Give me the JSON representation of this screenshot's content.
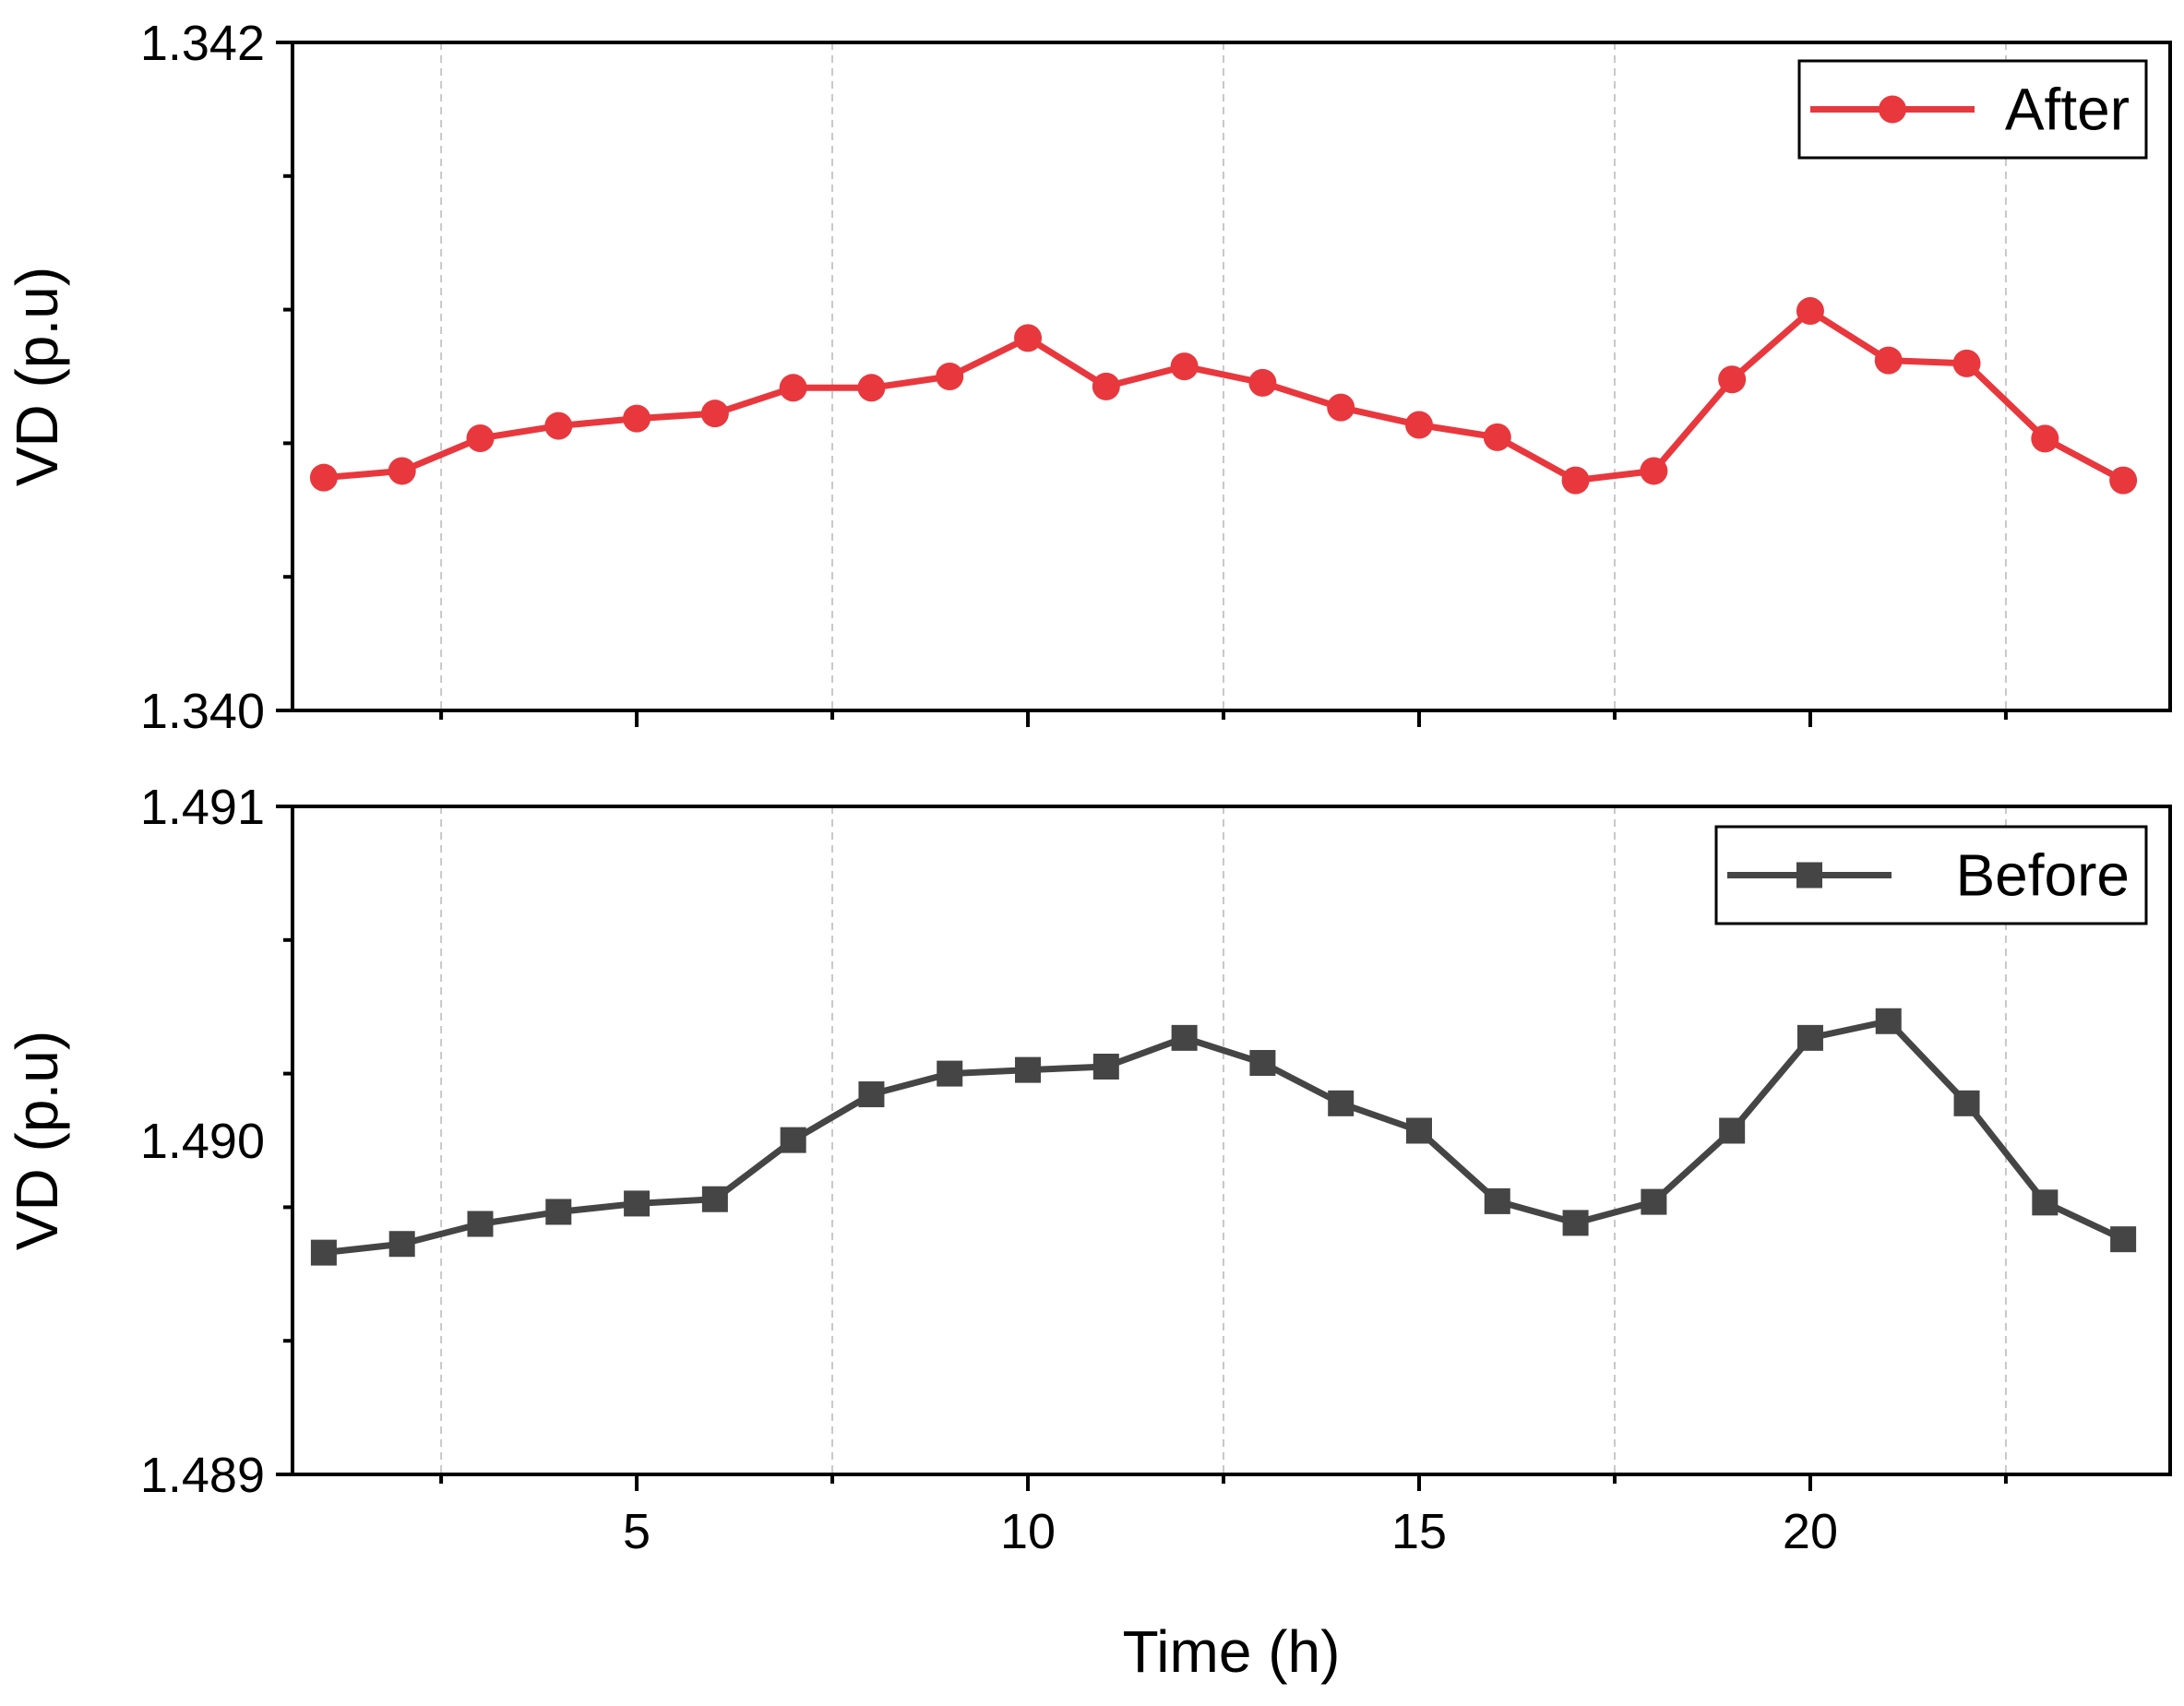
{
  "chart_data": [
    {
      "type": "line",
      "panel": "top",
      "xlabel": "",
      "ylabel": "VD (p.u)",
      "xlim": [
        0.6,
        24.6
      ],
      "ylim": [
        1.34,
        1.342
      ],
      "xticks": [
        5,
        10,
        15,
        20
      ],
      "xtick_labels": [
        "5",
        "10",
        "15",
        "20"
      ],
      "yticks": [
        1.34,
        1.342
      ],
      "ytick_labels": [
        "1.340",
        "1.342"
      ],
      "grid_x": [
        2.5,
        7.5,
        12.5,
        17.5,
        22.5
      ],
      "legend_position": "top-right",
      "series": [
        {
          "name": "After",
          "color": "#e8383d",
          "marker": "circle",
          "x": [
            1,
            2,
            3,
            4,
            5,
            6,
            7,
            8,
            9,
            10,
            11,
            12,
            13,
            14,
            15,
            16,
            17,
            18,
            19,
            20,
            21,
            22,
            23,
            24
          ],
          "values": [
            1.340697,
            1.340717,
            1.340815,
            1.340852,
            1.340874,
            1.340889,
            1.340966,
            1.340966,
            1.341,
            1.341115,
            1.34097,
            1.34103,
            1.340981,
            1.340907,
            1.340855,
            1.340818,
            1.340689,
            1.340717,
            1.340991,
            1.341196,
            1.341048,
            1.341039,
            1.340814,
            1.340689
          ]
        }
      ]
    },
    {
      "type": "line",
      "panel": "bottom",
      "xlabel": "Time (h)",
      "ylabel": "VD (p.u)",
      "xlim": [
        0.6,
        24.6
      ],
      "ylim": [
        1.489,
        1.491
      ],
      "xticks": [
        5,
        10,
        15,
        20
      ],
      "xtick_labels": [
        "5",
        "10",
        "15",
        "20"
      ],
      "yticks": [
        1.489,
        1.49,
        1.491
      ],
      "ytick_labels": [
        "1.489",
        "1.490",
        "1.491"
      ],
      "grid_x": [
        2.5,
        7.5,
        12.5,
        17.5,
        22.5
      ],
      "legend_position": "top-right",
      "series": [
        {
          "name": "Before",
          "color": "#454545",
          "marker": "square",
          "x": [
            1,
            2,
            3,
            4,
            5,
            6,
            7,
            8,
            9,
            10,
            11,
            12,
            13,
            14,
            15,
            16,
            17,
            18,
            19,
            20,
            21,
            22,
            23,
            24
          ],
          "values": [
            1.489664,
            1.48969,
            1.48975,
            1.489786,
            1.489811,
            1.489824,
            1.490001,
            1.490138,
            1.4902,
            1.490211,
            1.490221,
            1.490307,
            1.490232,
            1.490111,
            1.490029,
            1.489818,
            1.489753,
            1.489816,
            1.490029,
            1.490307,
            1.490357,
            1.490111,
            1.489814,
            1.489704
          ]
        }
      ]
    }
  ]
}
